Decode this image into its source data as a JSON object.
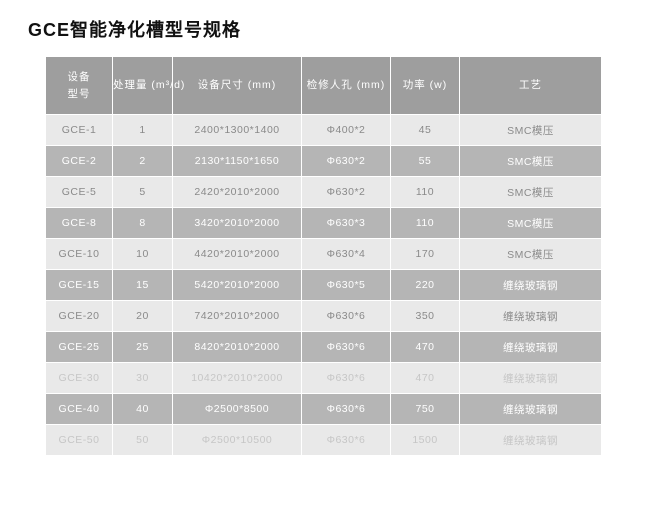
{
  "page": {
    "title": "GCE智能净化槽型号规格"
  },
  "table": {
    "columns": [
      {
        "lines": [
          "设备",
          "型号"
        ]
      },
      {
        "lines": [
          "处理量 (m³/d)"
        ]
      },
      {
        "lines": [
          "设备尺寸 (mm)"
        ]
      },
      {
        "lines": [
          "检修人孔 (mm)"
        ]
      },
      {
        "lines": [
          "功率 (w)"
        ]
      },
      {
        "lines": [
          "工艺"
        ]
      }
    ],
    "rows": [
      {
        "cells": [
          "GCE-1",
          "1",
          "2400*1300*1400",
          "Φ400*2",
          "45",
          "SMC模压"
        ]
      },
      {
        "cells": [
          "GCE-2",
          "2",
          "2130*1150*1650",
          "Φ630*2",
          "55",
          "SMC模压"
        ]
      },
      {
        "cells": [
          "GCE-5",
          "5",
          "2420*2010*2000",
          "Φ630*2",
          "110",
          "SMC模压"
        ]
      },
      {
        "cells": [
          "GCE-8",
          "8",
          "3420*2010*2000",
          "Φ630*3",
          "110",
          "SMC模压"
        ]
      },
      {
        "cells": [
          "GCE-10",
          "10",
          "4420*2010*2000",
          "Φ630*4",
          "170",
          "SMC模压"
        ]
      },
      {
        "cells": [
          "GCE-15",
          "15",
          "5420*2010*2000",
          "Φ630*5",
          "220",
          "缠绕玻璃钢"
        ]
      },
      {
        "cells": [
          "GCE-20",
          "20",
          "7420*2010*2000",
          "Φ630*6",
          "350",
          "缠绕玻璃钢"
        ]
      },
      {
        "cells": [
          "GCE-25",
          "25",
          "8420*2010*2000",
          "Φ630*6",
          "470",
          "缠绕玻璃钢"
        ]
      },
      {
        "cells": [
          "GCE-30",
          "30",
          "10420*2010*2000",
          "Φ630*6",
          "470",
          "缠绕玻璃钢"
        ],
        "muted": true
      },
      {
        "cells": [
          "GCE-40",
          "40",
          "Φ2500*8500",
          "Φ630*6",
          "750",
          "缠绕玻璃钢"
        ]
      },
      {
        "cells": [
          "GCE-50",
          "50",
          "Φ2500*10500",
          "Φ630*6",
          "1500",
          "缠绕玻璃钢"
        ],
        "muted": true
      }
    ],
    "colors": {
      "header_bg": "#9e9e9e",
      "dark_row_bg": "#b5b5b5",
      "light_row_bg": "#e9e9e9",
      "header_text": "#ffffff",
      "dark_row_text": "#ffffff",
      "light_row_text": "#8a8a8a",
      "muted_row_text": "#c6c6c6",
      "title_text": "#111111",
      "grid_line": "#ffffff"
    }
  }
}
